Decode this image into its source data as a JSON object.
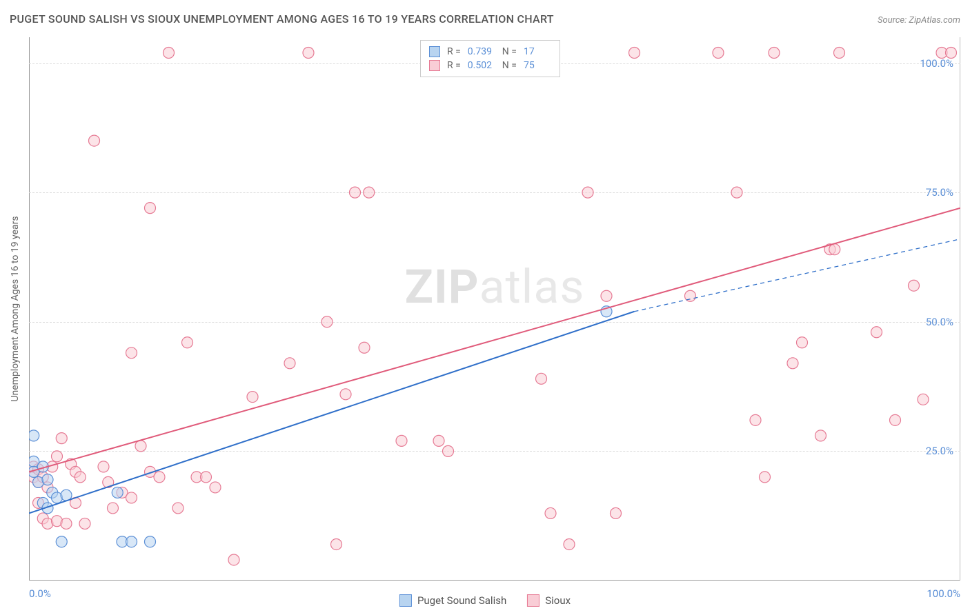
{
  "title": "PUGET SOUND SALISH VS SIOUX UNEMPLOYMENT AMONG AGES 16 TO 19 YEARS CORRELATION CHART",
  "source": "Source: ZipAtlas.com",
  "watermark_a": "ZIP",
  "watermark_b": "atlas",
  "ylabel": "Unemployment Among Ages 16 to 19 years",
  "chart": {
    "type": "scatter",
    "xlim": [
      0,
      100
    ],
    "ylim": [
      0,
      105
    ],
    "x_ticks": [
      {
        "v": 0,
        "label": "0.0%"
      },
      {
        "v": 100,
        "label": "100.0%"
      }
    ],
    "y_ticks": [
      {
        "v": 25,
        "label": "25.0%"
      },
      {
        "v": 50,
        "label": "50.0%"
      },
      {
        "v": 75,
        "label": "75.0%"
      },
      {
        "v": 100,
        "label": "100.0%"
      }
    ],
    "grid_color": "#dddddd",
    "axis_color": "#999999",
    "background_color": "#ffffff",
    "label_color": "#5b8fd6",
    "marker_radius": 8,
    "marker_stroke_width": 1.2,
    "line_width": 2,
    "series": [
      {
        "name": "Puget Sound Salish",
        "color_fill": "#b8d4f0",
        "color_stroke": "#5b8fd6",
        "line_color": "#2f6fc9",
        "r": "0.739",
        "n": "17",
        "regression": {
          "x1": 0,
          "y1": 13,
          "x2": 65,
          "y2": 52,
          "dash_x2": 100,
          "dash_y2": 66
        },
        "points": [
          {
            "x": 0.5,
            "y": 28
          },
          {
            "x": 0.5,
            "y": 23
          },
          {
            "x": 0.5,
            "y": 21
          },
          {
            "x": 1.0,
            "y": 19
          },
          {
            "x": 1.5,
            "y": 22
          },
          {
            "x": 1.5,
            "y": 15
          },
          {
            "x": 2.0,
            "y": 19.5
          },
          {
            "x": 2.0,
            "y": 14
          },
          {
            "x": 2.5,
            "y": 17
          },
          {
            "x": 3.0,
            "y": 16
          },
          {
            "x": 3.5,
            "y": 7.5
          },
          {
            "x": 4.0,
            "y": 16.5
          },
          {
            "x": 9.5,
            "y": 17
          },
          {
            "x": 10.0,
            "y": 7.5
          },
          {
            "x": 11.0,
            "y": 7.5
          },
          {
            "x": 13.0,
            "y": 7.5
          },
          {
            "x": 62.0,
            "y": 52
          }
        ]
      },
      {
        "name": "Sioux",
        "color_fill": "#f9cdd6",
        "color_stroke": "#e67a94",
        "line_color": "#e05a7a",
        "r": "0.502",
        "n": "75",
        "regression": {
          "x1": 0,
          "y1": 21,
          "x2": 100,
          "y2": 72
        },
        "points": [
          {
            "x": 0.5,
            "y": 20
          },
          {
            "x": 0.5,
            "y": 22
          },
          {
            "x": 1.0,
            "y": 21.5
          },
          {
            "x": 1.0,
            "y": 19
          },
          {
            "x": 1.0,
            "y": 15
          },
          {
            "x": 1.5,
            "y": 20
          },
          {
            "x": 1.5,
            "y": 12
          },
          {
            "x": 2.0,
            "y": 18
          },
          {
            "x": 2.0,
            "y": 11
          },
          {
            "x": 2.5,
            "y": 22
          },
          {
            "x": 3.0,
            "y": 24
          },
          {
            "x": 3.0,
            "y": 11.5
          },
          {
            "x": 3.5,
            "y": 27.5
          },
          {
            "x": 4.0,
            "y": 11
          },
          {
            "x": 4.5,
            "y": 22.5
          },
          {
            "x": 5.0,
            "y": 15
          },
          {
            "x": 5.0,
            "y": 21
          },
          {
            "x": 5.5,
            "y": 20
          },
          {
            "x": 6.0,
            "y": 11
          },
          {
            "x": 7.0,
            "y": 85
          },
          {
            "x": 8.0,
            "y": 22
          },
          {
            "x": 8.5,
            "y": 19
          },
          {
            "x": 9.0,
            "y": 14
          },
          {
            "x": 10.0,
            "y": 17
          },
          {
            "x": 11.0,
            "y": 16
          },
          {
            "x": 11.0,
            "y": 44
          },
          {
            "x": 12.0,
            "y": 26
          },
          {
            "x": 13.0,
            "y": 21
          },
          {
            "x": 13.0,
            "y": 72
          },
          {
            "x": 14.0,
            "y": 20
          },
          {
            "x": 15.0,
            "y": 102
          },
          {
            "x": 16.0,
            "y": 14
          },
          {
            "x": 17.0,
            "y": 46
          },
          {
            "x": 18.0,
            "y": 20
          },
          {
            "x": 19.0,
            "y": 20
          },
          {
            "x": 20.0,
            "y": 18
          },
          {
            "x": 22.0,
            "y": 4
          },
          {
            "x": 24.0,
            "y": 35.5
          },
          {
            "x": 28.0,
            "y": 42
          },
          {
            "x": 30.0,
            "y": 102
          },
          {
            "x": 32.0,
            "y": 50
          },
          {
            "x": 33.0,
            "y": 7
          },
          {
            "x": 34.0,
            "y": 36
          },
          {
            "x": 35.0,
            "y": 75
          },
          {
            "x": 36.0,
            "y": 45
          },
          {
            "x": 36.5,
            "y": 75
          },
          {
            "x": 40.0,
            "y": 27
          },
          {
            "x": 44.0,
            "y": 27
          },
          {
            "x": 45.0,
            "y": 25
          },
          {
            "x": 48.0,
            "y": 102
          },
          {
            "x": 55.0,
            "y": 39
          },
          {
            "x": 56.0,
            "y": 13
          },
          {
            "x": 58.0,
            "y": 7
          },
          {
            "x": 60.0,
            "y": 75
          },
          {
            "x": 62.0,
            "y": 55
          },
          {
            "x": 63.0,
            "y": 13
          },
          {
            "x": 65.0,
            "y": 102
          },
          {
            "x": 71.0,
            "y": 55
          },
          {
            "x": 74.0,
            "y": 102
          },
          {
            "x": 76.0,
            "y": 75
          },
          {
            "x": 78.0,
            "y": 31
          },
          {
            "x": 79.0,
            "y": 20
          },
          {
            "x": 80.0,
            "y": 102
          },
          {
            "x": 82.0,
            "y": 42
          },
          {
            "x": 83.0,
            "y": 46
          },
          {
            "x": 85.0,
            "y": 28
          },
          {
            "x": 86.0,
            "y": 64
          },
          {
            "x": 86.5,
            "y": 64
          },
          {
            "x": 87.0,
            "y": 102
          },
          {
            "x": 91.0,
            "y": 48
          },
          {
            "x": 93.0,
            "y": 31
          },
          {
            "x": 95.0,
            "y": 57
          },
          {
            "x": 96.0,
            "y": 35
          },
          {
            "x": 98.0,
            "y": 102
          },
          {
            "x": 99.0,
            "y": 102
          }
        ]
      }
    ]
  },
  "legend": {
    "series1": "Puget Sound Salish",
    "series2": "Sioux"
  }
}
